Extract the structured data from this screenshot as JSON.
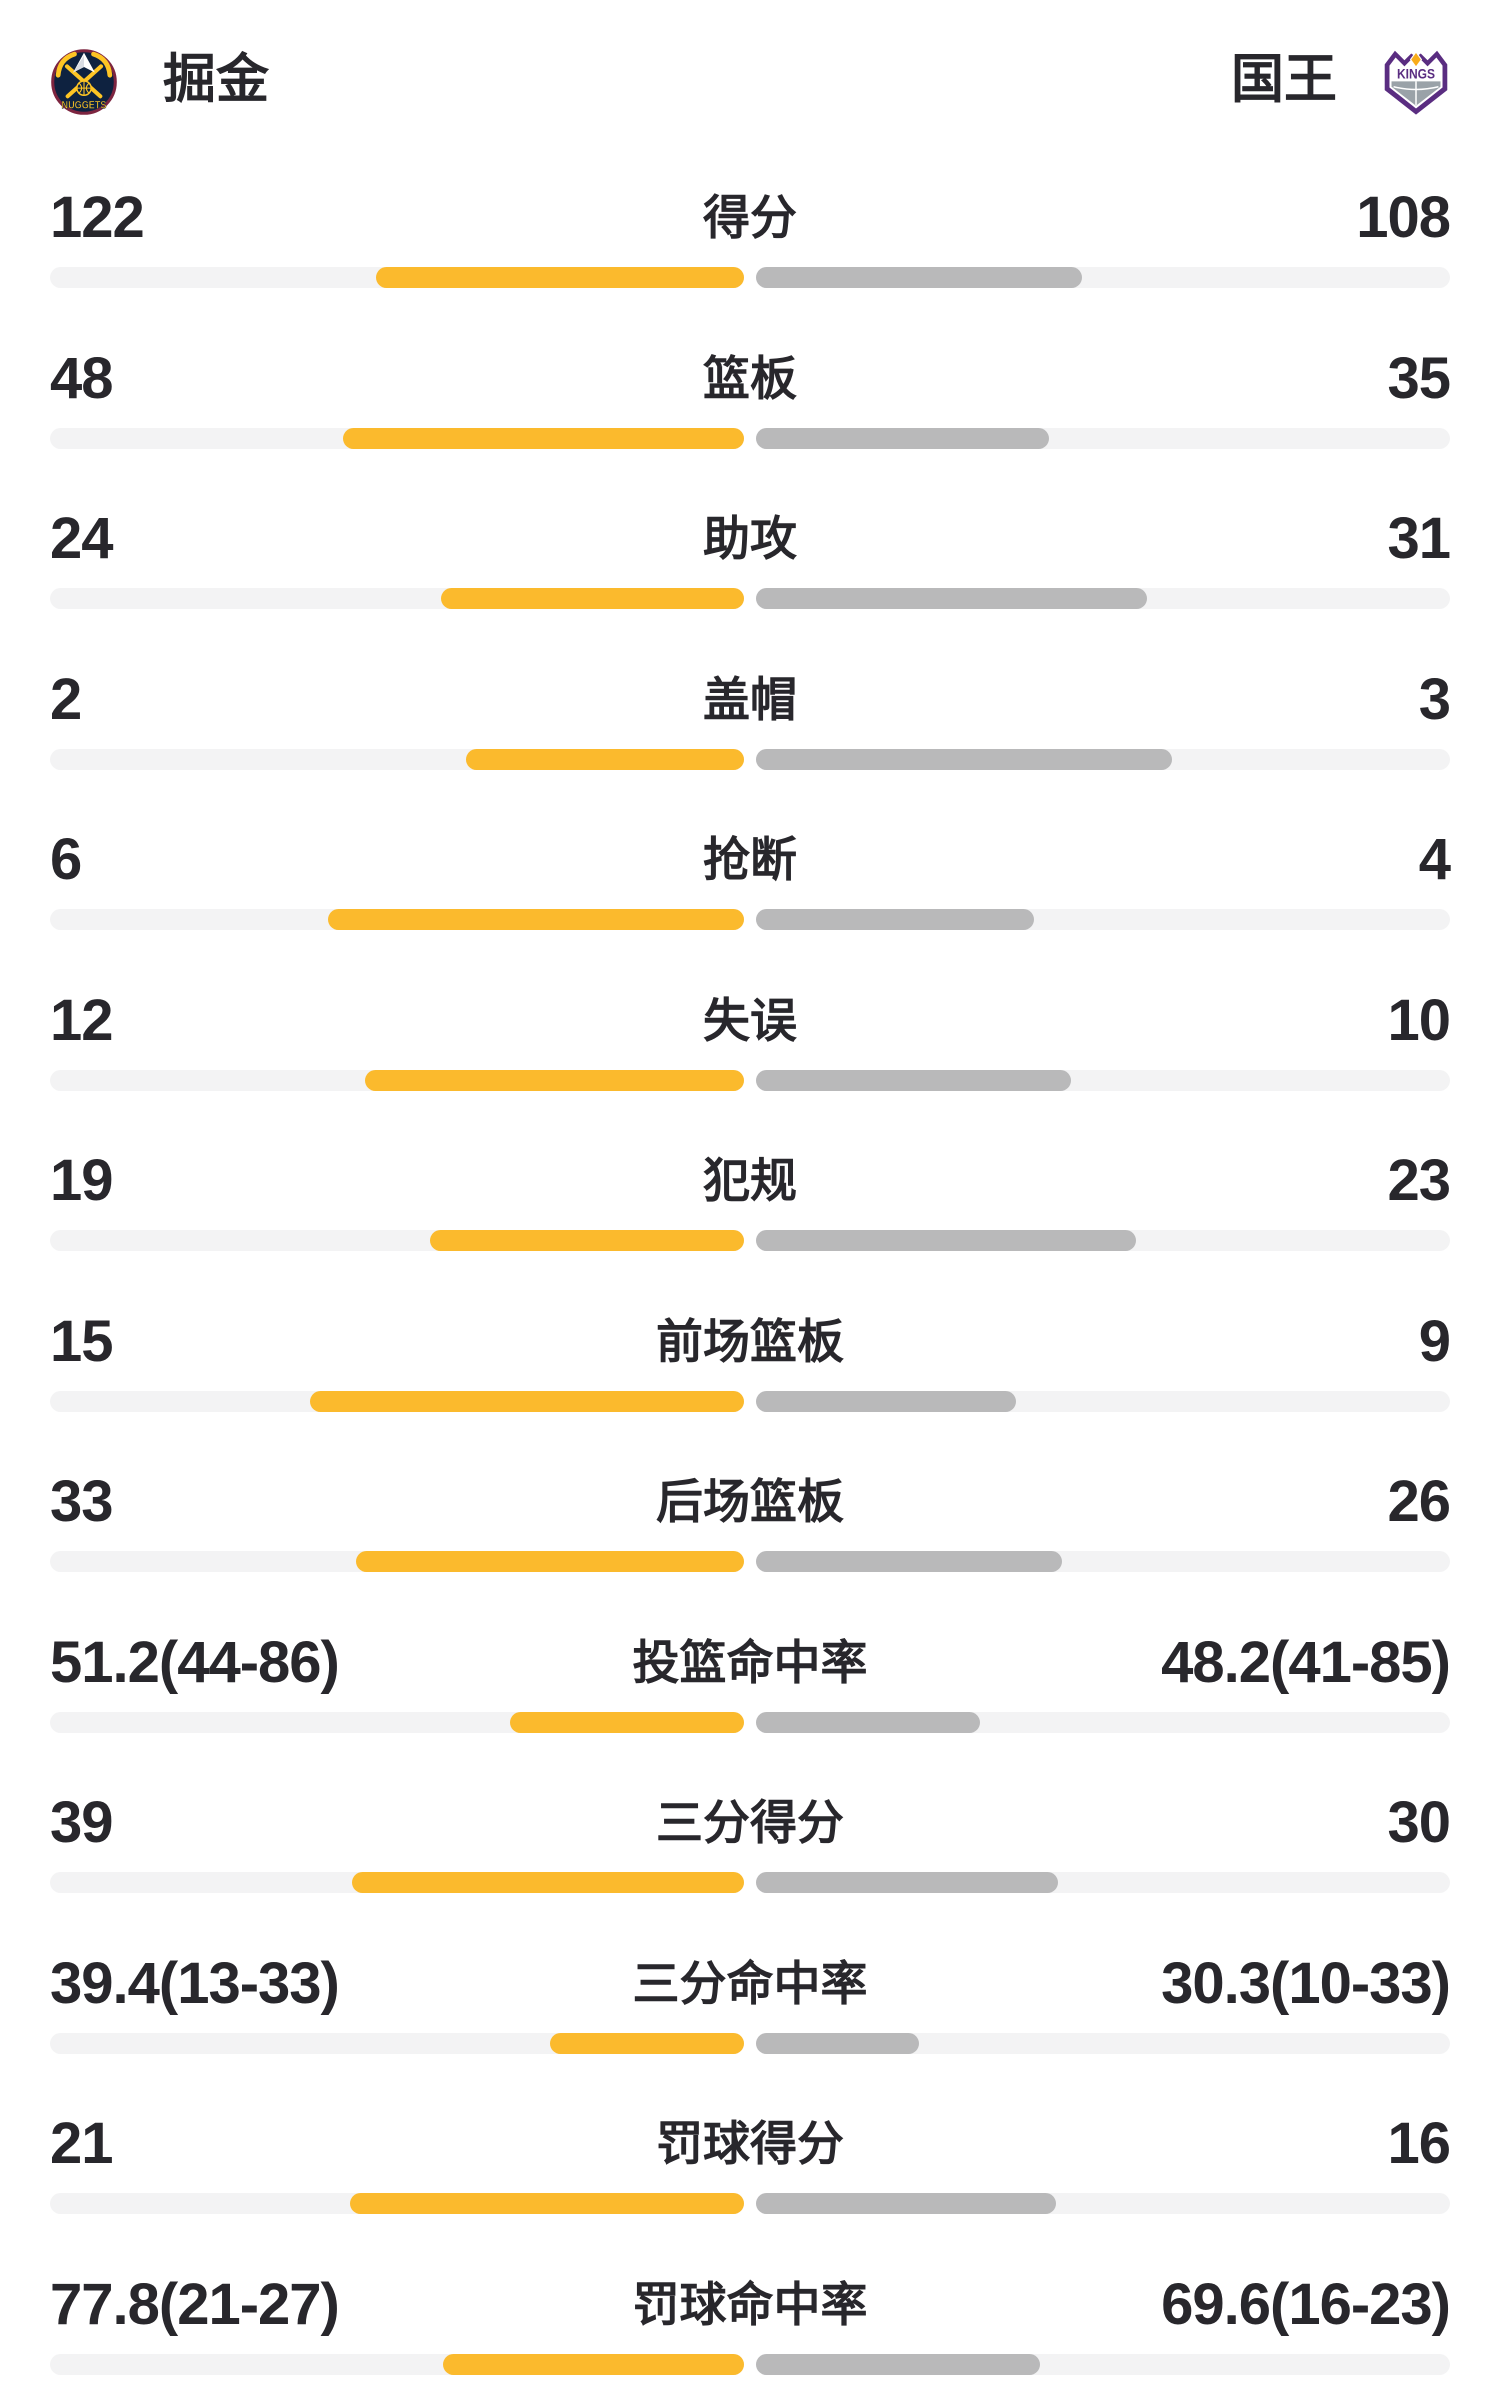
{
  "header": {
    "home_team": {
      "name": "掘金",
      "logo": "nuggets",
      "logo_text": "NUGGETS"
    },
    "away_team": {
      "name": "国王",
      "logo": "kings",
      "logo_text": "KINGS"
    }
  },
  "colors": {
    "home_bar": "#FBBA2D",
    "away_bar": "#B9B9BA",
    "track": "#F3F3F4",
    "text": "#28272C"
  },
  "chart_data": {
    "type": "bar",
    "description": "head-to-head game stats, bars grow outward from center",
    "stats": [
      {
        "label": "得分",
        "left": "122",
        "right": "108",
        "bar_left": 0.5304,
        "bar_right": 0.4696
      },
      {
        "label": "篮板",
        "left": "48",
        "right": "35",
        "bar_left": 0.5783,
        "bar_right": 0.4217
      },
      {
        "label": "助攻",
        "left": "24",
        "right": "31",
        "bar_left": 0.4364,
        "bar_right": 0.5636
      },
      {
        "label": "盖帽",
        "left": "2",
        "right": "3",
        "bar_left": 0.4,
        "bar_right": 0.6
      },
      {
        "label": "抢断",
        "left": "6",
        "right": "4",
        "bar_left": 0.6,
        "bar_right": 0.4
      },
      {
        "label": "失误",
        "left": "12",
        "right": "10",
        "bar_left": 0.5455,
        "bar_right": 0.4545
      },
      {
        "label": "犯规",
        "left": "19",
        "right": "23",
        "bar_left": 0.4524,
        "bar_right": 0.5476
      },
      {
        "label": "前场篮板",
        "left": "15",
        "right": "9",
        "bar_left": 0.625,
        "bar_right": 0.375
      },
      {
        "label": "后场篮板",
        "left": "33",
        "right": "26",
        "bar_left": 0.5593,
        "bar_right": 0.4407
      },
      {
        "label": "投篮命中率",
        "left": "51.2(44-86)",
        "right": "48.2(41-85)",
        "bar_left": 0.3372,
        "bar_right": 0.3228
      },
      {
        "label": "三分得分",
        "left": "39",
        "right": "30",
        "bar_left": 0.5652,
        "bar_right": 0.4348
      },
      {
        "label": "三分命中率",
        "left": "39.4(13-33)",
        "right": "30.3(10-33)",
        "bar_left": 0.2796,
        "bar_right": 0.2349
      },
      {
        "label": "罚球得分",
        "left": "21",
        "right": "16",
        "bar_left": 0.5676,
        "bar_right": 0.4324
      },
      {
        "label": "罚球命中率",
        "left": "77.8(21-27)",
        "right": "69.6(16-23)",
        "bar_left": 0.4337,
        "bar_right": 0.4092
      }
    ]
  }
}
